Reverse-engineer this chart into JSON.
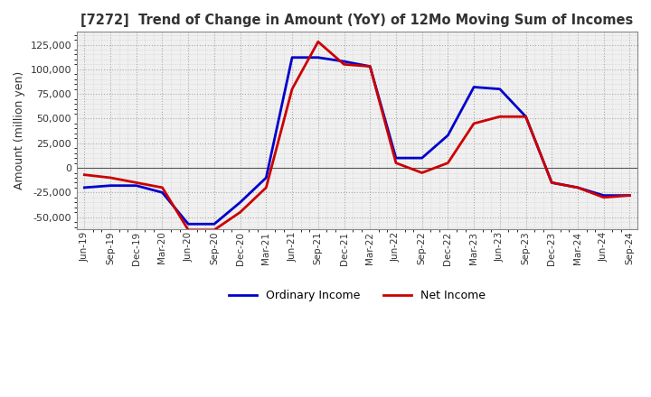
{
  "title": "[7272]  Trend of Change in Amount (YoY) of 12Mo Moving Sum of Incomes",
  "ylabel": "Amount (million yen)",
  "ylim": [
    -62000,
    138000
  ],
  "yticks": [
    -50000,
    -25000,
    0,
    25000,
    50000,
    75000,
    100000,
    125000
  ],
  "background_color": "#ffffff",
  "plot_bg_color": "#f5f5f5",
  "grid_color": "#aaaaaa",
  "dates": [
    "Jun-19",
    "Sep-19",
    "Dec-19",
    "Mar-20",
    "Jun-20",
    "Sep-20",
    "Dec-20",
    "Mar-21",
    "Jun-21",
    "Sep-21",
    "Dec-21",
    "Mar-22",
    "Jun-22",
    "Sep-22",
    "Dec-22",
    "Mar-23",
    "Jun-23",
    "Sep-23",
    "Dec-23",
    "Mar-24",
    "Jun-24",
    "Sep-24"
  ],
  "ordinary_income": [
    -20000,
    -18000,
    -18000,
    -25000,
    -57000,
    -57000,
    -35000,
    -10000,
    112000,
    112000,
    108000,
    103000,
    10000,
    10000,
    33000,
    82000,
    80000,
    52000,
    -15000,
    -20000,
    -28000,
    -28000
  ],
  "net_income": [
    -7000,
    -10000,
    -15000,
    -20000,
    -63000,
    -63000,
    -45000,
    -20000,
    80000,
    128000,
    105000,
    103000,
    5000,
    -5000,
    5000,
    45000,
    52000,
    52000,
    -15000,
    -20000,
    -30000,
    -28000
  ],
  "ordinary_color": "#0000cc",
  "net_color": "#cc0000",
  "line_width": 2.0
}
